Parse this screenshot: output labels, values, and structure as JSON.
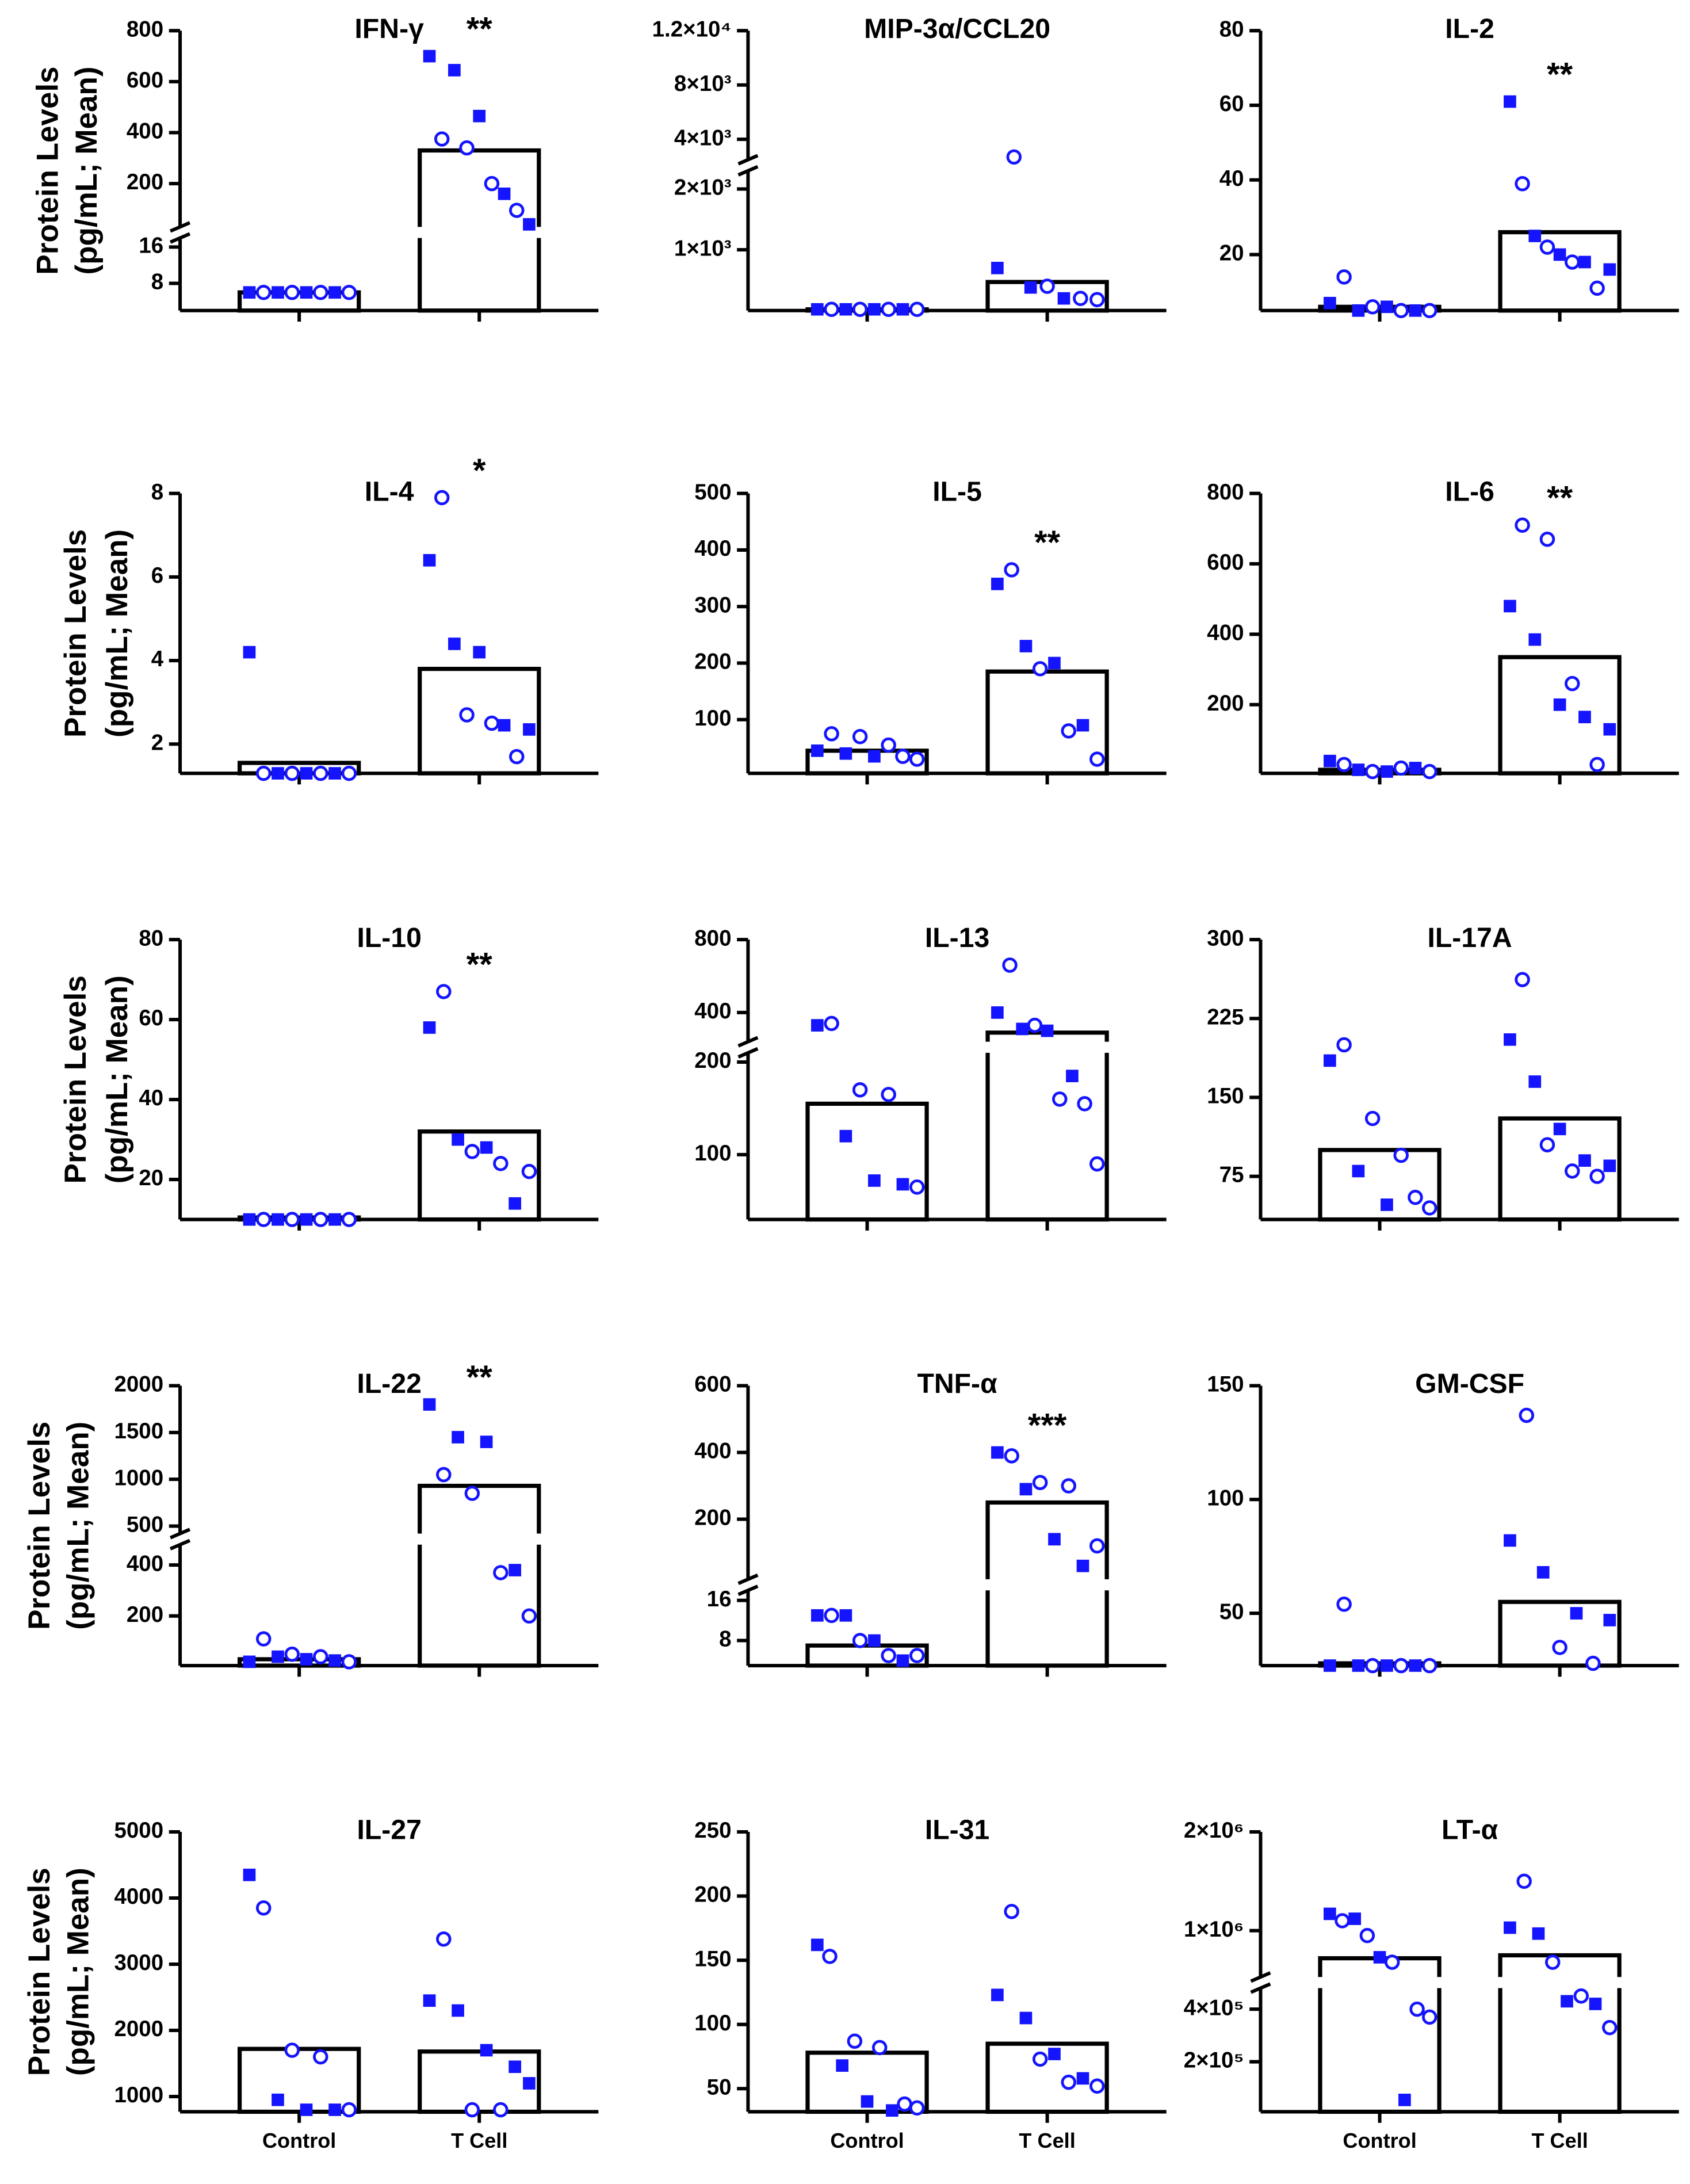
{
  "chart_data": [
    {
      "type": "bar",
      "title": "IFN-γ",
      "significance": "**",
      "ylabel": [
        "Protein Levels",
        "(pg/mL; Mean)"
      ],
      "categories": [
        null,
        null
      ],
      "color": "#1414ff",
      "values": [
        6,
        330
      ],
      "squares": [
        [
          6,
          6,
          6,
          6
        ],
        [
          700,
          645,
          465,
          160,
          40
        ]
      ],
      "circles": [
        [
          6,
          6,
          6,
          6
        ],
        [
          375,
          340,
          200,
          95
        ]
      ],
      "y_segments": [
        {
          "ylim": [
            2,
            18
          ],
          "yticks": [
            8,
            16
          ]
        },
        {
          "ylim": [
            30,
            800
          ],
          "yticks": [
            200,
            400,
            600,
            800
          ]
        }
      ]
    },
    {
      "type": "bar",
      "title": "MIP-3α/CCL20",
      "categories": [
        null,
        null
      ],
      "color": "#1414ff",
      "values": [
        20,
        470
      ],
      "squares": [
        [
          20,
          20,
          20,
          20
        ],
        [
          700,
          380,
          200
        ]
      ],
      "circles": [
        [
          20,
          20,
          20,
          20
        ],
        [
          2700,
          400,
          200,
          180
        ]
      ],
      "y_segments": [
        {
          "ylim": [
            0,
            2300
          ],
          "yticks": [
            {
              "value": 1000,
              "label": "1×10³"
            },
            {
              "value": 2000,
              "label": "2×10³"
            }
          ]
        },
        {
          "ylim": [
            2500,
            12000
          ],
          "yticks": [
            {
              "value": 4000,
              "label": "4×10³"
            },
            {
              "value": 8000,
              "label": "8×10³"
            },
            {
              "value": 12000,
              "label": "1.2×10⁴"
            }
          ]
        }
      ]
    },
    {
      "type": "bar",
      "title": "IL-2",
      "significance": "**",
      "categories": [
        null,
        null
      ],
      "color": "#1414ff",
      "values": [
        6,
        26
      ],
      "squares": [
        [
          7,
          5,
          6,
          5
        ],
        [
          61,
          25,
          20,
          18,
          16
        ]
      ],
      "circles": [
        [
          14,
          6,
          5,
          5
        ],
        [
          39,
          22,
          18,
          11
        ]
      ],
      "ylim": [
        5,
        80
      ],
      "yticks": [
        20,
        40,
        60,
        80
      ]
    },
    {
      "type": "bar",
      "title": "IL-4",
      "significance": "*",
      "ylabel": [
        "Protein Levels",
        "(pg/mL; Mean)"
      ],
      "categories": [
        null,
        null
      ],
      "color": "#1414ff",
      "values": [
        1.55,
        3.8
      ],
      "squares": [
        [
          4.2,
          1.3,
          1.3,
          1.3
        ],
        [
          6.4,
          4.4,
          4.2,
          2.45,
          2.35
        ]
      ],
      "circles": [
        [
          1.3,
          1.3,
          1.3,
          1.3
        ],
        [
          7.9,
          2.7,
          2.5,
          1.7
        ]
      ],
      "ylim": [
        1.3,
        8
      ],
      "yticks": [
        2,
        4,
        6,
        8
      ]
    },
    {
      "type": "bar",
      "title": "IL-5",
      "significance": "**",
      "categories": [
        null,
        null
      ],
      "color": "#1414ff",
      "values": [
        45,
        185
      ],
      "squares": [
        [
          45,
          40,
          35
        ],
        [
          340,
          230,
          200,
          90
        ]
      ],
      "circles": [
        [
          75,
          70,
          55,
          35,
          30
        ],
        [
          365,
          190,
          80,
          30
        ]
      ],
      "ylim": [
        5,
        500
      ],
      "yticks": [
        100,
        200,
        300,
        400,
        500
      ]
    },
    {
      "type": "bar",
      "title": "IL-6",
      "significance": "**",
      "categories": [
        null,
        null
      ],
      "color": "#1414ff",
      "values": [
        15,
        335
      ],
      "squares": [
        [
          40,
          15,
          10,
          20
        ],
        [
          480,
          385,
          200,
          165,
          130
        ]
      ],
      "circles": [
        [
          30,
          10,
          20,
          10
        ],
        [
          710,
          670,
          260,
          30
        ]
      ],
      "ylim": [
        5,
        800
      ],
      "yticks": [
        200,
        400,
        600,
        800
      ]
    },
    {
      "type": "bar",
      "title": "IL-10",
      "significance": "**",
      "ylabel": [
        "Protein Levels",
        "(pg/mL; Mean)"
      ],
      "categories": [
        null,
        null
      ],
      "color": "#1414ff",
      "values": [
        10.5,
        32
      ],
      "squares": [
        [
          10,
          10,
          10,
          10
        ],
        [
          58,
          30,
          28,
          14
        ]
      ],
      "circles": [
        [
          10,
          10,
          10,
          10
        ],
        [
          67,
          27,
          24,
          22
        ]
      ],
      "ylim": [
        10,
        80
      ],
      "yticks": [
        20,
        40,
        60,
        80
      ]
    },
    {
      "type": "bar",
      "title": "IL-13",
      "categories": [
        null,
        null
      ],
      "color": "#1414ff",
      "values": [
        155,
        290
      ],
      "squares": [
        [
          330,
          120,
          72,
          68
        ],
        [
          400,
          310,
          300,
          185
        ]
      ],
      "circles": [
        [
          340,
          170,
          165,
          65
        ],
        [
          660,
          330,
          160,
          155,
          90
        ]
      ],
      "y_segments": [
        {
          "ylim": [
            30,
            210
          ],
          "yticks": [
            100,
            200
          ]
        },
        {
          "ylim": [
            240,
            800
          ],
          "yticks": [
            400,
            800
          ]
        }
      ]
    },
    {
      "type": "bar",
      "title": "IL-17A",
      "categories": [
        null,
        null
      ],
      "color": "#1414ff",
      "values": [
        100,
        130
      ],
      "squares": [
        [
          185,
          80,
          48
        ],
        [
          205,
          165,
          120,
          90,
          85
        ]
      ],
      "circles": [
        [
          200,
          130,
          95,
          55,
          45
        ],
        [
          262,
          105,
          80,
          75
        ]
      ],
      "ylim": [
        34,
        300
      ],
      "yticks": [
        75,
        150,
        225,
        300
      ]
    },
    {
      "type": "bar",
      "title": "IL-22",
      "significance": "**",
      "ylabel": [
        "Protein Levels",
        "(pg/mL; Mean)"
      ],
      "categories": [
        null,
        null
      ],
      "color": "#1414ff",
      "values": [
        30,
        930
      ],
      "squares": [
        [
          20,
          40,
          30,
          25
        ],
        [
          1800,
          1450,
          1400,
          380
        ]
      ],
      "circles": [
        [
          110,
          50,
          40,
          20
        ],
        [
          1050,
          850,
          370,
          200
        ]
      ],
      "y_segments": [
        {
          "ylim": [
            5,
            480
          ],
          "yticks": [
            200,
            400
          ]
        },
        {
          "ylim": [
            420,
            2000
          ],
          "yticks": [
            500,
            1000,
            1500,
            2000
          ]
        }
      ]
    },
    {
      "type": "bar",
      "title": "TNF-α",
      "significance": "***",
      "categories": [
        null,
        null
      ],
      "color": "#1414ff",
      "values": [
        7,
        250
      ],
      "squares": [
        [
          13,
          13,
          8,
          4
        ],
        [
          400,
          290,
          140,
          60
        ]
      ],
      "circles": [
        [
          13,
          8,
          5,
          5
        ],
        [
          390,
          310,
          300,
          120
        ]
      ],
      "y_segments": [
        {
          "ylim": [
            3,
            18
          ],
          "yticks": [
            8,
            16
          ]
        },
        {
          "ylim": [
            20,
            600
          ],
          "yticks": [
            200,
            400,
            600
          ]
        }
      ]
    },
    {
      "type": "bar",
      "title": "GM-CSF",
      "categories": [
        null,
        null
      ],
      "color": "#1414ff",
      "values": [
        28,
        55
      ],
      "squares": [
        [
          27,
          27,
          27,
          27
        ],
        [
          82,
          68,
          50,
          47
        ]
      ],
      "circles": [
        [
          54,
          27,
          27,
          27
        ],
        [
          137,
          35,
          28
        ]
      ],
      "ylim": [
        27,
        150
      ],
      "yticks": [
        50,
        100,
        150
      ]
    },
    {
      "type": "bar",
      "title": "IL-27",
      "ylabel": [
        "Protein Levels",
        "(pg/mL; Mean)"
      ],
      "categories": [
        "Control",
        "T Cell"
      ],
      "color": "#1414ff",
      "values": [
        1720,
        1680
      ],
      "squares": [
        [
          4350,
          950,
          800,
          800
        ],
        [
          2450,
          2300,
          1700,
          1450,
          1200
        ]
      ],
      "circles": [
        [
          3850,
          1700,
          1600,
          800
        ],
        [
          3380,
          800,
          800
        ]
      ],
      "ylim": [
        770,
        5000
      ],
      "yticks": [
        1000,
        2000,
        3000,
        4000,
        5000
      ]
    },
    {
      "type": "bar",
      "title": "IL-31",
      "categories": [
        "Control",
        "T Cell"
      ],
      "color": "#1414ff",
      "values": [
        78,
        85
      ],
      "squares": [
        [
          162,
          68,
          40,
          33
        ],
        [
          123,
          105,
          77,
          58
        ]
      ],
      "circles": [
        [
          153,
          87,
          82,
          38,
          35
        ],
        [
          188,
          73,
          55,
          52
        ]
      ],
      "ylim": [
        32,
        250
      ],
      "yticks": [
        50,
        100,
        150,
        200,
        250
      ]
    },
    {
      "type": "bar",
      "title": "LT-α",
      "categories": [
        "Control",
        "T Cell"
      ],
      "color": "#1414ff",
      "values": [
        720000,
        750000
      ],
      "squares": [
        [
          1170000,
          1120000,
          730000,
          55000
        ],
        [
          1030000,
          970000,
          430000,
          420000
        ]
      ],
      "circles": [
        [
          1100000,
          950000,
          680000,
          400000,
          370000
        ],
        [
          1500000,
          680000,
          450000,
          330000
        ]
      ],
      "y_segments": [
        {
          "ylim": [
            10000,
            480000
          ],
          "yticks": [
            {
              "value": 200000,
              "label": "2×10⁵"
            },
            {
              "value": 400000,
              "label": "4×10⁵"
            }
          ]
        },
        {
          "ylim": [
            530000,
            2000000
          ],
          "yticks": [
            {
              "value": 1000000,
              "label": "1×10⁶"
            },
            {
              "value": 2000000,
              "label": "2×10⁶"
            }
          ]
        }
      ]
    }
  ]
}
